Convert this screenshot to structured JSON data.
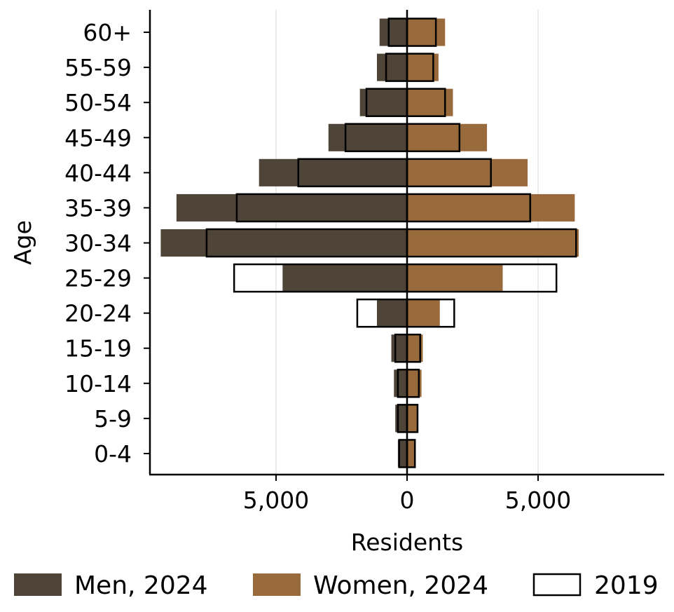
{
  "chart_data": {
    "type": "bar",
    "orientation": "horizontal-population-pyramid",
    "xlabel": "Residents",
    "ylabel": "Age",
    "xlim": [
      -9900,
      9900
    ],
    "x_ticks": [
      -5000,
      0,
      5000
    ],
    "x_tick_labels": [
      "5,000",
      "0",
      "5,000"
    ],
    "grid": "vertical",
    "legend_position": "bottom",
    "categories": [
      "0-4",
      "5-9",
      "10-14",
      "15-19",
      "20-24",
      "25-29",
      "30-34",
      "35-39",
      "40-44",
      "45-49",
      "50-54",
      "55-59",
      "60+"
    ],
    "series": [
      {
        "name": "Men, 2024",
        "kind": "filled",
        "side": "left",
        "color": "#4e4438",
        "values": [
          350,
          450,
          500,
          600,
          1150,
          4750,
          9400,
          8800,
          5650,
          3000,
          1800,
          1150,
          1050
        ]
      },
      {
        "name": "Women, 2024",
        "kind": "filled",
        "side": "right",
        "color": "#996a3c",
        "values": [
          300,
          400,
          550,
          600,
          1250,
          3650,
          6550,
          6400,
          4600,
          3050,
          1750,
          1200,
          1450
        ]
      },
      {
        "name": "2019",
        "kind": "outline",
        "color": "#000000",
        "men": [
          300,
          350,
          350,
          450,
          1900,
          6600,
          7650,
          6500,
          4150,
          2350,
          1550,
          800,
          700
        ],
        "women": [
          300,
          400,
          450,
          500,
          1800,
          5700,
          6450,
          4700,
          3200,
          2000,
          1450,
          1000,
          1100
        ]
      }
    ]
  }
}
